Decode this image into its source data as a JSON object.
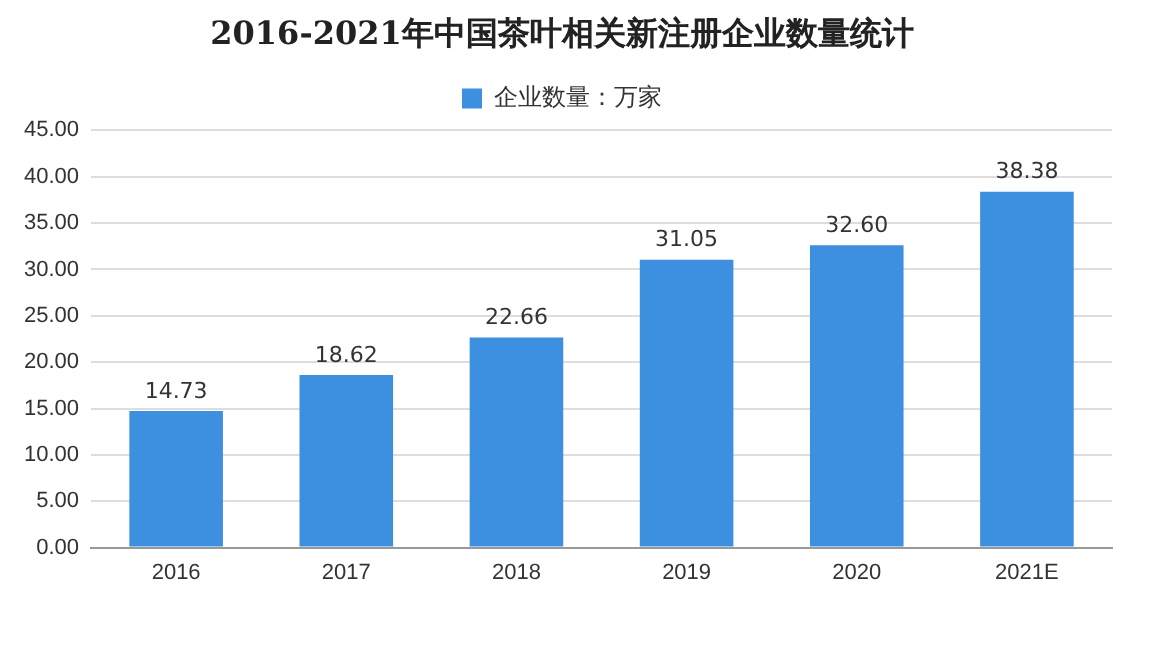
{
  "chart_data": {
    "type": "bar",
    "title": "2016-2021年中国茶叶相关新注册企业数量统计",
    "categories": [
      "2016",
      "2017",
      "2018",
      "2019",
      "2020",
      "2021E"
    ],
    "series": [
      {
        "name": "企业数量：万家",
        "color": "#3d8fe0",
        "values": [
          14.73,
          18.62,
          22.66,
          31.05,
          32.6,
          38.38
        ]
      }
    ],
    "value_labels": [
      "14.73",
      "18.62",
      "22.66",
      "31.05",
      "32.60",
      "38.38"
    ],
    "ylim": [
      0,
      45
    ],
    "yticks": [
      {
        "value": 0,
        "label": "0.00"
      },
      {
        "value": 5,
        "label": "5.00"
      },
      {
        "value": 10,
        "label": "10.00"
      },
      {
        "value": 15,
        "label": "15.00"
      },
      {
        "value": 20,
        "label": "20.00"
      },
      {
        "value": 25,
        "label": "25.00"
      },
      {
        "value": 30,
        "label": "30.00"
      },
      {
        "value": 35,
        "label": "35.00"
      },
      {
        "value": 40,
        "label": "40.00"
      },
      {
        "value": 45,
        "label": "45.00"
      }
    ],
    "grid": "y",
    "legend": "top"
  }
}
